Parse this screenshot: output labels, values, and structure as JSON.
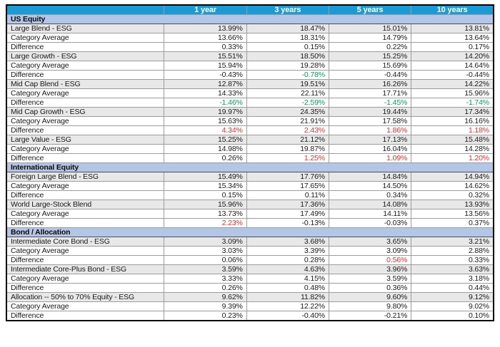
{
  "colors": {
    "header_bg": "#189bd7",
    "header_text": "#ffffff",
    "section_bg": "#b4c6e7",
    "fund_row_bg": "#e8e8e8",
    "positive_diff_red": "#ff2b2b",
    "negative_diff_green": "#00a65a",
    "grid_border": "#9c9c9c",
    "outer_border": "#000000"
  },
  "table": {
    "columns": [
      "",
      "1 year",
      "3 years",
      "5 years",
      "10 years"
    ],
    "sections": [
      {
        "title": "US Equity",
        "rows": [
          {
            "label": "Large Blend - ESG",
            "shaded": true,
            "values": [
              "13.99%",
              "18.47%",
              "15.01%",
              "13.81%"
            ]
          },
          {
            "label": "Category Average",
            "values": [
              "13.66%",
              "18.31%",
              "14.79%",
              "13.64%"
            ]
          },
          {
            "label": "Difference",
            "values": [
              "0.33%",
              "0.15%",
              "0.22%",
              "0.17%"
            ]
          },
          {
            "label": "Large Growth - ESG",
            "shaded": true,
            "values": [
              "15.51%",
              "18.50%",
              "15.25%",
              "14.20%"
            ]
          },
          {
            "label": "Category Average",
            "values": [
              "15.94%",
              "19.28%",
              "15.69%",
              "14.64%"
            ]
          },
          {
            "label": "Difference",
            "values": [
              "-0.43%",
              "-0.78%",
              "-0.44%",
              "-0.44%"
            ],
            "colors": [
              "default",
              "green",
              "default",
              "default"
            ]
          },
          {
            "label": "Mid Cap Blend - ESG",
            "shaded": true,
            "values": [
              "12.87%",
              "19.51%",
              "16.26%",
              "14.22%"
            ]
          },
          {
            "label": "Category Average",
            "values": [
              "14.33%",
              "22.11%",
              "17.71%",
              "15.96%"
            ]
          },
          {
            "label": "Difference",
            "values": [
              "-1.46%",
              "-2.59%",
              "-1.45%",
              "-1.74%"
            ],
            "colors": [
              "green",
              "green",
              "green",
              "green"
            ]
          },
          {
            "label": "Mid Cap Growth - ESG",
            "shaded": true,
            "values": [
              "19.97%",
              "24.35%",
              "19.44%",
              "17.34%"
            ]
          },
          {
            "label": "Category Average",
            "values": [
              "15.63%",
              "21.91%",
              "17.58%",
              "16.16%"
            ]
          },
          {
            "label": "Difference",
            "values": [
              "4.34%",
              "2.43%",
              "1.86%",
              "1.18%"
            ],
            "colors": [
              "red",
              "red",
              "red",
              "red"
            ]
          },
          {
            "label": "Large Value - ESG",
            "shaded": true,
            "values": [
              "15.25%",
              "21.12%",
              "17.13%",
              "15.48%"
            ]
          },
          {
            "label": "Category Average",
            "values": [
              "14.98%",
              "19.87%",
              "16.04%",
              "14.28%"
            ]
          },
          {
            "label": "Difference",
            "values": [
              "0.26%",
              "1.25%",
              "1.09%",
              "1.20%"
            ],
            "colors": [
              "default",
              "red",
              "red",
              "red"
            ]
          }
        ]
      },
      {
        "title": "International Equity",
        "rows": [
          {
            "label": "Foreign Large Blend - ESG",
            "shaded": true,
            "values": [
              "15.49%",
              "17.76%",
              "14.84%",
              "14.94%"
            ]
          },
          {
            "label": "Category Average",
            "values": [
              "15.34%",
              "17.65%",
              "14.50%",
              "14.62%"
            ]
          },
          {
            "label": "Difference",
            "values": [
              "0.15%",
              "0.11%",
              "0.34%",
              "0.32%"
            ]
          },
          {
            "label": "World Large-Stock Blend",
            "shaded": true,
            "values": [
              "15.96%",
              "17.36%",
              "14.08%",
              "13.93%"
            ]
          },
          {
            "label": "Category Average",
            "values": [
              "13.73%",
              "17.49%",
              "14.11%",
              "13.56%"
            ]
          },
          {
            "label": "Difference",
            "values": [
              "2.23%",
              "-0.13%",
              "-0.03%",
              "0.37%"
            ],
            "colors": [
              "red",
              "default",
              "default",
              "default"
            ]
          }
        ]
      },
      {
        "title": "Bond / Allocation",
        "rows": [
          {
            "label": "Intermediate Core Bond - ESG",
            "shaded": true,
            "values": [
              "3.09%",
              "3.68%",
              "3.65%",
              "3.21%"
            ]
          },
          {
            "label": "Category Average",
            "values": [
              "3.03%",
              "3.39%",
              "3.09%",
              "2.88%"
            ]
          },
          {
            "label": "Difference",
            "values": [
              "0.06%",
              "0.28%",
              "0.56%",
              "0.33%"
            ],
            "colors": [
              "default",
              "default",
              "red",
              "default"
            ]
          },
          {
            "label": "Intermediate Core-Plus Bond - ESG",
            "shaded": true,
            "values": [
              "3.59%",
              "4.63%",
              "3.96%",
              "3.63%"
            ]
          },
          {
            "label": "Category Average",
            "values": [
              "3.33%",
              "4.15%",
              "3.59%",
              "3.18%"
            ]
          },
          {
            "label": "Difference",
            "values": [
              "0.26%",
              "0.48%",
              "0.36%",
              "0.44%"
            ]
          },
          {
            "label": "Allocation -- 50% to 70% Equity - ESG",
            "shaded": true,
            "values": [
              "9.62%",
              "11.82%",
              "9.60%",
              "9.12%"
            ]
          },
          {
            "label": "Category Average",
            "values": [
              "9.39%",
              "12.22%",
              "9.80%",
              "9.02%"
            ]
          },
          {
            "label": "Difference",
            "values": [
              "0.23%",
              "-0.40%",
              "-0.21%",
              "0.10%"
            ]
          }
        ]
      }
    ]
  }
}
